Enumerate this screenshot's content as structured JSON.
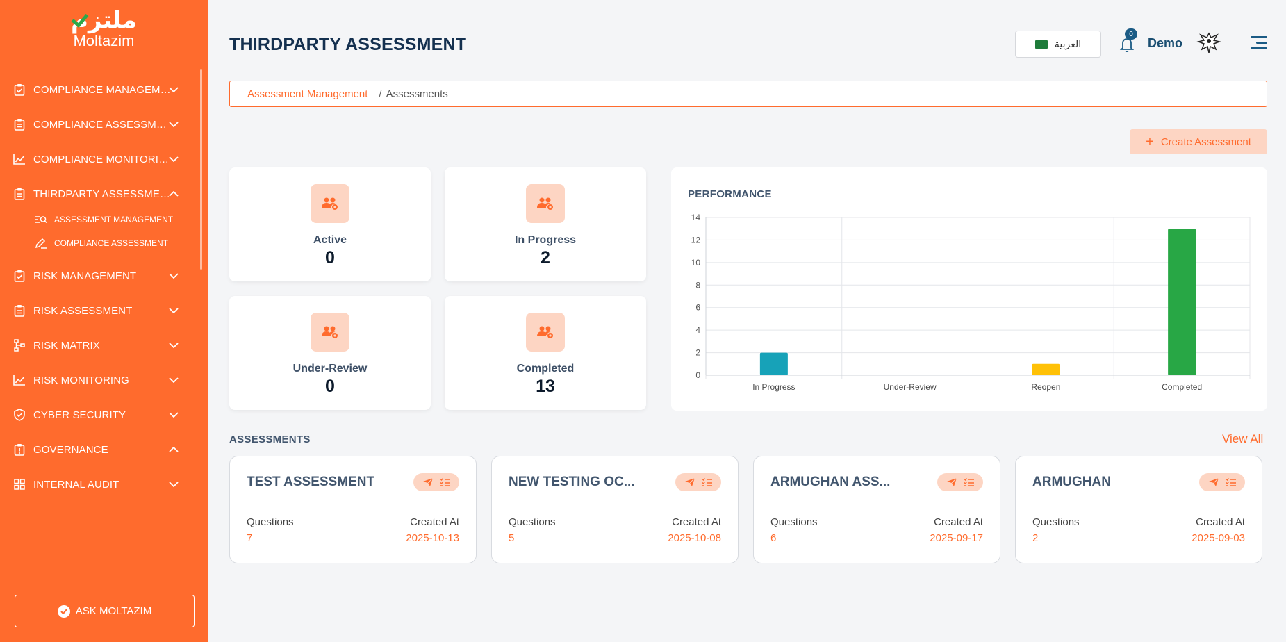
{
  "brand": {
    "logo_ar": "ملتزم",
    "logo_en": "Moltazim"
  },
  "sidebar": {
    "items": [
      {
        "label": "COMPLIANCE MANAGEME...",
        "icon": "clipboard-check-icon",
        "chevron": "down"
      },
      {
        "label": "COMPLIANCE ASSESSMENT",
        "icon": "clipboard-list-icon",
        "chevron": "down"
      },
      {
        "label": "COMPLIANCE MONITORING",
        "icon": "chart-line-icon",
        "chevron": "down"
      },
      {
        "label": "THIRDPARTY ASSESSMENT",
        "icon": "clipboard-list-icon",
        "chevron": "up"
      },
      {
        "label": "RISK MANAGEMENT",
        "icon": "clipboard-check-icon",
        "chevron": "down"
      },
      {
        "label": "RISK ASSESSMENT",
        "icon": "clipboard-list-icon",
        "chevron": "down"
      },
      {
        "label": "RISK MATRIX",
        "icon": "sitemap-icon",
        "chevron": "down"
      },
      {
        "label": "RISK MONITORING",
        "icon": "chart-line-icon",
        "chevron": "down"
      },
      {
        "label": "CYBER SECURITY",
        "icon": "shield-check-icon",
        "chevron": "down"
      },
      {
        "label": "GOVERNANCE",
        "icon": "clipboard-alert-icon",
        "chevron": "up"
      },
      {
        "label": "INTERNAL AUDIT",
        "icon": "grid-icon",
        "chevron": "down"
      }
    ],
    "sub_items": [
      {
        "label": "ASSESSMENT MANAGEMENT",
        "icon": "list-search-icon"
      },
      {
        "label": "COMPLIANCE ASSESSMENT",
        "icon": "pencil-icon"
      }
    ],
    "ask_label": "ASK MOLTAZIM"
  },
  "header": {
    "title": "THIRDPARTY ASSESSMENT",
    "language": "العربية",
    "notification_count": "0",
    "user": "Demo"
  },
  "breadcrumb": {
    "parent": "Assessment Management",
    "separator": "/",
    "current": "Assessments"
  },
  "create_button": {
    "plus": "+",
    "label": "Create Assessment"
  },
  "stats": [
    {
      "label": "Active",
      "value": "0"
    },
    {
      "label": "In Progress",
      "value": "2"
    },
    {
      "label": "Under-Review",
      "value": "0"
    },
    {
      "label": "Completed",
      "value": "13"
    }
  ],
  "performance": {
    "title": "PERFORMANCE"
  },
  "chart_data": {
    "type": "bar",
    "title": "PERFORMANCE",
    "categories": [
      "In Progress",
      "Under-Review",
      "Reopen",
      "Completed"
    ],
    "values": [
      2,
      0,
      1,
      13
    ],
    "colors": [
      "#17a2b8",
      "#6c757d",
      "#ffc107",
      "#28a745"
    ],
    "ylim": [
      0,
      14
    ],
    "yticks": [
      0,
      2,
      4,
      6,
      8,
      10,
      12,
      14
    ],
    "grid": true,
    "legend": "none"
  },
  "assessments": {
    "title": "ASSESSMENTS",
    "view_all": "View All",
    "questions_label": "Questions",
    "created_label": "Created At",
    "items": [
      {
        "name": "TEST ASSESSMENT",
        "questions": "7",
        "created": "2025-10-13"
      },
      {
        "name": "NEW TESTING OC...",
        "questions": "5",
        "created": "2025-10-08"
      },
      {
        "name": "ARMUGHAN ASS...",
        "questions": "6",
        "created": "2025-09-17"
      },
      {
        "name": "ARMUGHAN",
        "questions": "2",
        "created": "2025-09-03"
      }
    ]
  },
  "colors": {
    "accent": "#ff6b2d",
    "accent_light": "#fdd5c3",
    "navy": "#14304f"
  }
}
